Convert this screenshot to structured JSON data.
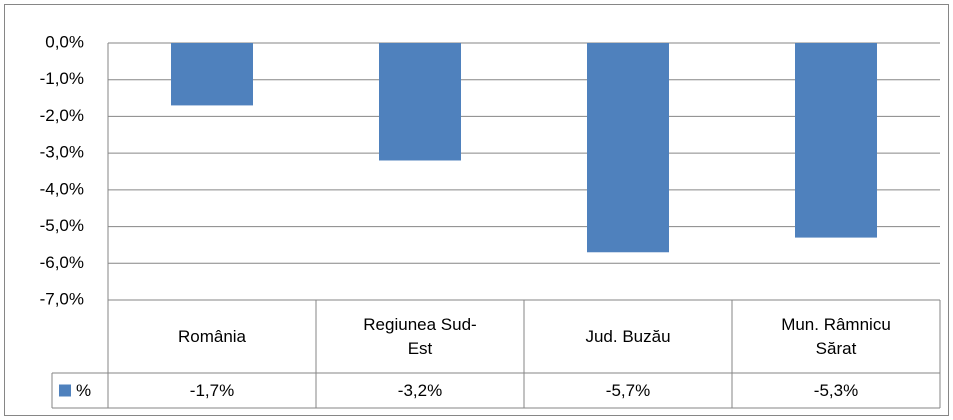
{
  "chart_data": {
    "type": "bar",
    "categories": [
      "România",
      "Regiunea Sud-Est",
      "Jud. Buzău",
      "Mun. Râmnicu Sărat"
    ],
    "series": [
      {
        "name": "%",
        "color": "#4f81bd",
        "values": [
          -1.7,
          -3.2,
          -5.7,
          -5.3
        ],
        "value_labels": [
          "-1,7%",
          "-3,2%",
          "-5,7%",
          "-5,3%"
        ]
      }
    ],
    "ylim": [
      -7,
      0
    ],
    "yticks": [
      {
        "value": 0,
        "label": "0,0%"
      },
      {
        "value": -1,
        "label": "-1,0%"
      },
      {
        "value": -2,
        "label": "-2,0%"
      },
      {
        "value": -3,
        "label": "-3,0%"
      },
      {
        "value": -4,
        "label": "-4,0%"
      },
      {
        "value": -5,
        "label": "-5,0%"
      },
      {
        "value": -6,
        "label": "-6,0%"
      },
      {
        "value": -7,
        "label": "-7,0%"
      }
    ],
    "grid": true
  }
}
